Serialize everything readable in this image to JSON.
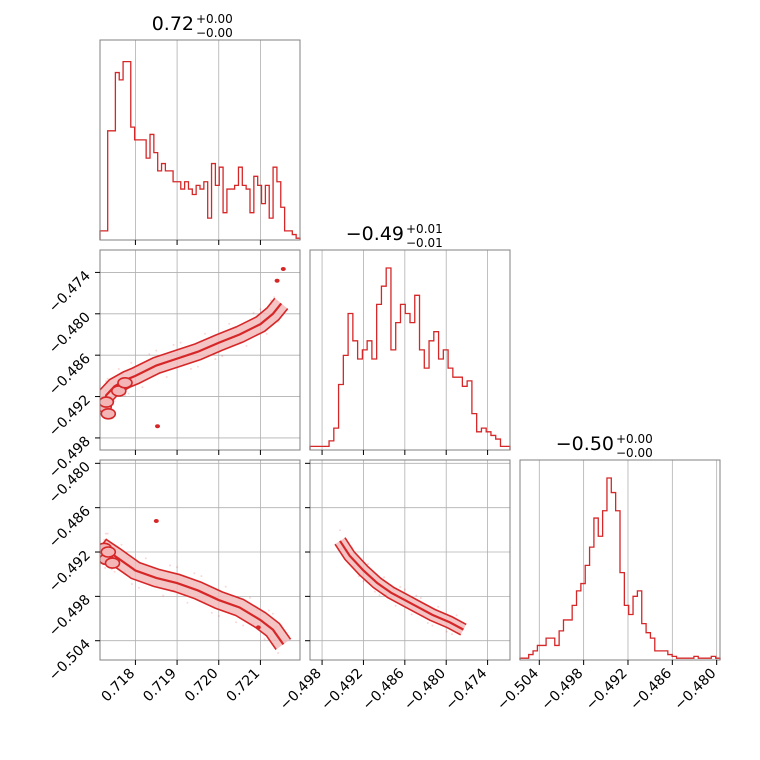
{
  "figure": {
    "accent_color": "#d62728",
    "background": "#ffffff",
    "grid_color": "#b0b0b0"
  },
  "chart_data": {
    "type": "corner",
    "title": "",
    "parameters": [
      "",
      "",
      ""
    ],
    "titles": [
      {
        "value": "0.72",
        "upper": "+0.00",
        "lower": "−0.00"
      },
      {
        "value": "−0.49",
        "upper": "+0.01",
        "lower": "−0.01"
      },
      {
        "value": "−0.50",
        "upper": "+0.00",
        "lower": "−0.00"
      }
    ],
    "ranges": [
      [
        0.71715,
        0.72195
      ],
      [
        -0.49975,
        -0.47075
      ],
      [
        -0.50661,
        -0.47955
      ]
    ],
    "ticks": [
      {
        "values": [
          0.718,
          0.719,
          0.72,
          0.721
        ],
        "labels": [
          "0.718",
          "0.719",
          "0.720",
          "0.721"
        ]
      },
      {
        "values": [
          -0.498,
          -0.492,
          -0.486,
          -0.48,
          -0.474
        ],
        "labels": [
          "−0.498",
          "−0.492",
          "−0.486",
          "−0.480",
          "−0.474"
        ]
      },
      {
        "values": [
          -0.504,
          -0.498,
          -0.492,
          -0.486,
          -0.48
        ],
        "labels": [
          "−0.504",
          "−0.498",
          "−0.492",
          "−0.486",
          "−0.480"
        ]
      }
    ],
    "histograms": [
      {
        "param": 0,
        "bin_heights": [
          0.05,
          0.05,
          0.6,
          0.6,
          0.92,
          0.88,
          0.98,
          0.98,
          0.62,
          0.55,
          0.55,
          0.55,
          0.45,
          0.58,
          0.48,
          0.38,
          0.42,
          0.38,
          0.38,
          0.32,
          0.32,
          0.28,
          0.32,
          0.28,
          0.25,
          0.3,
          0.28,
          0.32,
          0.12,
          0.42,
          0.3,
          0.4,
          0.15,
          0.28,
          0.28,
          0.3,
          0.4,
          0.3,
          0.28,
          0.15,
          0.35,
          0.3,
          0.2,
          0.3,
          0.12,
          0.4,
          0.32,
          0.18,
          0.05,
          0.05,
          0.03,
          0.01
        ]
      },
      {
        "param": 1,
        "bin_heights": [
          0.02,
          0.02,
          0.02,
          0.02,
          0.05,
          0.12,
          0.36,
          0.52,
          0.75,
          0.6,
          0.5,
          0.55,
          0.6,
          0.5,
          0.8,
          0.9,
          1.0,
          0.55,
          0.7,
          0.8,
          0.75,
          0.7,
          0.85,
          0.55,
          0.45,
          0.6,
          0.65,
          0.5,
          0.55,
          0.45,
          0.4,
          0.4,
          0.35,
          0.38,
          0.2,
          0.1,
          0.12,
          0.1,
          0.08,
          0.06,
          0.02,
          0.02
        ]
      },
      {
        "param": 2,
        "bin_heights": [
          0.01,
          0.01,
          0.03,
          0.05,
          0.08,
          0.08,
          0.12,
          0.12,
          0.08,
          0.16,
          0.22,
          0.22,
          0.3,
          0.38,
          0.42,
          0.52,
          0.62,
          0.78,
          0.68,
          0.82,
          1.0,
          0.92,
          0.82,
          0.48,
          0.3,
          0.25,
          0.35,
          0.38,
          0.2,
          0.15,
          0.12,
          0.05,
          0.05,
          0.05,
          0.03,
          0.02,
          0.01,
          0.01,
          0.01,
          0.01,
          0.02,
          0.01,
          0.01,
          0.01,
          0.02,
          0.01
        ]
      }
    ],
    "pairs": [
      {
        "x_param": 0,
        "y_param": 1,
        "ridge": [
          [
            0.71727,
            -0.4925
          ],
          [
            0.7173,
            -0.4918
          ],
          [
            0.7175,
            -0.4905
          ],
          [
            0.7178,
            -0.4895
          ],
          [
            0.718,
            -0.489
          ],
          [
            0.7185,
            -0.4875
          ],
          [
            0.719,
            -0.4865
          ],
          [
            0.7195,
            -0.4855
          ],
          [
            0.72,
            -0.4842
          ],
          [
            0.7205,
            -0.483
          ],
          [
            0.721,
            -0.4815
          ],
          [
            0.7213,
            -0.48
          ],
          [
            0.7215,
            -0.4785
          ]
        ],
        "spread": 0.0012,
        "blobs": [
          [
            0.71725,
            -0.4935
          ],
          [
            0.7173,
            -0.4928
          ],
          [
            0.71735,
            -0.4945
          ],
          [
            0.7176,
            -0.4912
          ],
          [
            0.71775,
            -0.49
          ]
        ],
        "outliers": [
          [
            0.71853,
            -0.4963
          ],
          [
            0.72155,
            -0.4735
          ],
          [
            0.7214,
            -0.4752
          ]
        ]
      },
      {
        "x_param": 0,
        "y_param": 2,
        "ridge": [
          [
            0.71725,
            -0.4925
          ],
          [
            0.7173,
            -0.4915
          ],
          [
            0.7175,
            -0.4925
          ],
          [
            0.718,
            -0.4945
          ],
          [
            0.7185,
            -0.4955
          ],
          [
            0.719,
            -0.4962
          ],
          [
            0.7195,
            -0.4972
          ],
          [
            0.72,
            -0.4985
          ],
          [
            0.7205,
            -0.4995
          ],
          [
            0.721,
            -0.5012
          ],
          [
            0.7213,
            -0.5025
          ],
          [
            0.72155,
            -0.5045
          ]
        ],
        "spread": 0.0012,
        "blobs": [
          [
            0.71725,
            -0.4915
          ],
          [
            0.7173,
            -0.493
          ],
          [
            0.71735,
            -0.492
          ],
          [
            0.71745,
            -0.4935
          ]
        ],
        "outliers": [
          [
            0.7185,
            -0.4878
          ],
          [
            0.72095,
            -0.5022
          ]
        ]
      },
      {
        "x_param": 1,
        "y_param": 2,
        "ridge": [
          [
            -0.4954,
            -0.4905
          ],
          [
            -0.494,
            -0.4925
          ],
          [
            -0.492,
            -0.4945
          ],
          [
            -0.49,
            -0.4962
          ],
          [
            -0.488,
            -0.4975
          ],
          [
            -0.486,
            -0.4985
          ],
          [
            -0.484,
            -0.4995
          ],
          [
            -0.482,
            -0.5005
          ],
          [
            -0.4795,
            -0.5015
          ],
          [
            -0.4775,
            -0.5025
          ]
        ],
        "spread": 0.0008,
        "blobs": [],
        "outliers": []
      }
    ]
  }
}
